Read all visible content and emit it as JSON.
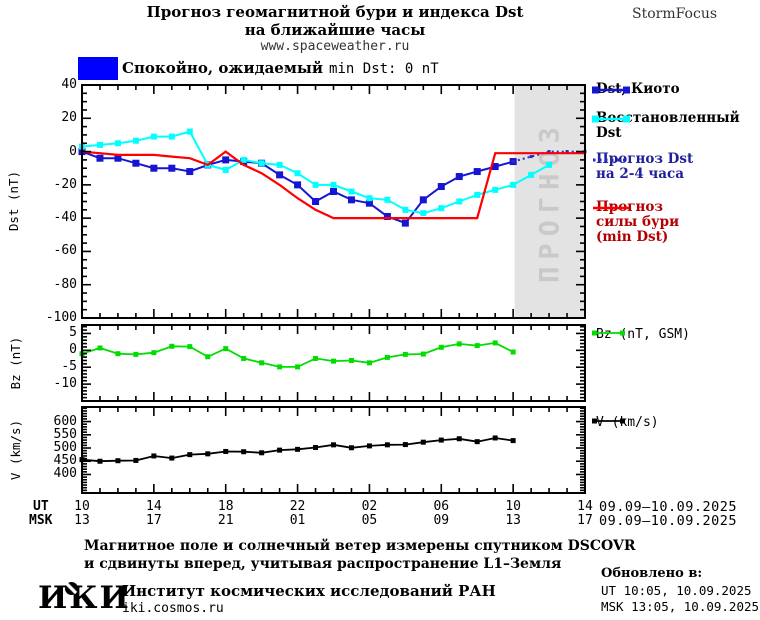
{
  "header": {
    "title_line1": "Прогноз геомагнитной бури и индекса Dst",
    "title_line2": "на ближайшие часы",
    "title_line3": "www.spaceweather.ru",
    "brand": "StormFocus"
  },
  "status_banner": {
    "label_ru": "Спокойно, ожидаемый",
    "label_latin": "min Dst: 0 nT",
    "color": "#0000ff"
  },
  "forecast_band": {
    "label": "ПРОГНОЗ",
    "bg": "#e3e3e3",
    "text_color": "#c9c9c9",
    "start_hour": 24.08
  },
  "x_axis": {
    "ut_label": "UT",
    "msk_label": "MSK",
    "major_hours": [
      0,
      4,
      8,
      12,
      16,
      20,
      24,
      28
    ],
    "ut_ticks": [
      "10",
      "14",
      "18",
      "22",
      "02",
      "06",
      "10",
      "14"
    ],
    "msk_ticks": [
      "13",
      "17",
      "21",
      "01",
      "05",
      "09",
      "13",
      "17"
    ],
    "date_ut": "09.09–10.09.2025",
    "date_msk": "09.09–10.09.2025"
  },
  "legend_main": [
    {
      "lines": [
        "Dst, Киото"
      ],
      "color": "#1616d2",
      "text_color": "#000000",
      "swatch": "line-squares"
    },
    {
      "lines": [
        "Восстановленный",
        "Dst"
      ],
      "color": "#00ffff",
      "text_color": "#000000",
      "swatch": "line-squares"
    },
    {
      "lines": [
        "Прогноз Dst",
        "на 2-4 часа"
      ],
      "color": "#2a2ac8",
      "text_color": "#20209a",
      "swatch": "dots"
    },
    {
      "lines": [
        "Прогноз",
        "силы бури",
        "(min Dst)"
      ],
      "color": "#ff0000",
      "text_color": "#b40000",
      "swatch": "line"
    }
  ],
  "side_legends": [
    {
      "label": "Bz (nT, GSM)",
      "color": "#00dd00"
    },
    {
      "label": "V (km/s)",
      "color": "#000000"
    }
  ],
  "chart_data": [
    {
      "id": "dst",
      "type": "line",
      "ylabel": "Dst (nT)",
      "ylim": [
        -100,
        40
      ],
      "yticks": [
        40,
        20,
        0,
        -20,
        -40,
        -60,
        -80,
        -100
      ],
      "ytick_minor": 5,
      "xlim_hours": [
        0,
        28
      ],
      "series": [
        {
          "name": "Dst, Киото",
          "slug": "dst-kyoto",
          "color": "#1616d2",
          "marker": 7,
          "width": 2,
          "x": [
            0,
            1,
            2,
            3,
            4,
            5,
            6,
            7,
            8,
            9,
            10,
            11,
            12,
            13,
            14,
            15,
            16,
            17,
            18,
            19,
            20,
            21,
            22,
            23,
            24
          ],
          "y": [
            0,
            -4,
            -4,
            -7,
            -10,
            -10,
            -12,
            -8,
            -5,
            -6,
            -7,
            -14,
            -20,
            -30,
            -24,
            -29,
            -31,
            -39,
            -43,
            -29,
            -21,
            -15,
            -12,
            -9,
            -6
          ]
        },
        {
          "name": "Восстановленный Dst",
          "slug": "dst-restored",
          "color": "#00ffff",
          "marker": 6,
          "width": 2,
          "x": [
            0,
            1,
            2,
            3,
            4,
            5,
            6,
            7,
            8,
            9,
            10,
            11,
            12,
            13,
            14,
            15,
            16,
            17,
            18,
            19,
            20,
            21,
            22,
            23,
            24,
            25,
            26
          ],
          "y": [
            3,
            4,
            5,
            6.5,
            9,
            9,
            12,
            -8,
            -11,
            -5,
            -7,
            -8,
            -13,
            -20,
            -20,
            -24,
            -28,
            -29,
            -35,
            -37,
            -34,
            -30,
            -26,
            -23,
            -20,
            -14,
            -8
          ]
        },
        {
          "name": "Прогноз Dst на 2-4 часа",
          "slug": "dst-forecast",
          "color": "#2a2ac8",
          "marker": 3,
          "width": 2,
          "dotted": true,
          "x": [
            24,
            25,
            26,
            27,
            28
          ],
          "y": [
            -6,
            -3,
            0,
            0,
            0
          ]
        },
        {
          "name": "Прогноз силы бури (min Dst)",
          "slug": "storm-forecast",
          "color": "#ff0000",
          "marker": 0,
          "width": 2.2,
          "x": [
            0,
            1,
            2,
            3,
            4,
            5,
            6,
            7,
            8,
            9,
            10,
            11,
            12,
            13,
            14,
            15,
            16,
            17,
            18,
            19,
            20,
            21,
            22,
            23,
            24,
            25,
            26,
            27,
            28
          ],
          "y": [
            0,
            -1,
            -2,
            -2,
            -2,
            -3,
            -4,
            -8,
            0,
            -8,
            -13,
            -20,
            -28,
            -35,
            -40,
            -40,
            -40,
            -40,
            -40,
            -40,
            -40,
            -40,
            -40,
            -1,
            -1,
            -1,
            -1,
            -1,
            -1
          ]
        }
      ]
    },
    {
      "id": "bz",
      "type": "line",
      "ylabel": "Bz (nT)",
      "ylim": [
        -15,
        7.5
      ],
      "yticks": [
        5,
        0,
        -5,
        -10
      ],
      "ytick_minor": 1,
      "xlim_hours": [
        0,
        28
      ],
      "series": [
        {
          "name": "Bz (nT, GSM)",
          "slug": "bz",
          "color": "#00dd00",
          "marker": 5,
          "width": 1.8,
          "x": [
            0,
            1,
            2,
            3,
            4,
            5,
            6,
            7,
            8,
            9,
            10,
            11,
            12,
            13,
            14,
            15,
            16,
            17,
            18,
            19,
            20,
            21,
            22,
            23,
            24
          ],
          "y": [
            -1,
            0.7,
            -1,
            -1.2,
            -0.7,
            1.2,
            1.1,
            -1.9,
            0.5,
            -2.4,
            -3.7,
            -4.9,
            -4.9,
            -2.4,
            -3.2,
            -3,
            -3.7,
            -2.1,
            -1.2,
            -1.1,
            0.9,
            1.9,
            1.4,
            2.2,
            -0.5
          ]
        }
      ]
    },
    {
      "id": "v",
      "type": "line",
      "ylabel": "V (km/s)",
      "ylim": [
        330,
        655
      ],
      "yticks": [
        600,
        550,
        500,
        450,
        400
      ],
      "ytick_minor": 10,
      "xlim_hours": [
        0,
        28
      ],
      "series": [
        {
          "name": "V (km/s)",
          "slug": "v",
          "color": "#000000",
          "marker": 5,
          "width": 1.8,
          "x": [
            0,
            1,
            2,
            3,
            4,
            5,
            6,
            7,
            8,
            9,
            10,
            11,
            12,
            13,
            14,
            15,
            16,
            17,
            18,
            19,
            20,
            21,
            22,
            23,
            24
          ],
          "y": [
            456,
            450,
            452,
            453,
            470,
            462,
            475,
            478,
            487,
            486,
            482,
            492,
            495,
            502,
            512,
            501,
            508,
            512,
            513,
            522,
            530,
            535,
            524,
            538,
            528
          ]
        }
      ]
    }
  ],
  "footer": {
    "note_line1": "Магнитное поле и солнечный ветер измерены спутником DSCOVR",
    "note_line2": "и сдвинуты вперед, учитывая распространение L1–Земля",
    "logo": "ИКИ",
    "institute": "Институт космических исследований РАН",
    "website": "iki.cosmos.ru",
    "updated_label": "Обновлено в:",
    "updated_ut": "UT  10:05, 10.09.2025",
    "updated_msk": "MSK 13:05, 10.09.2025"
  }
}
